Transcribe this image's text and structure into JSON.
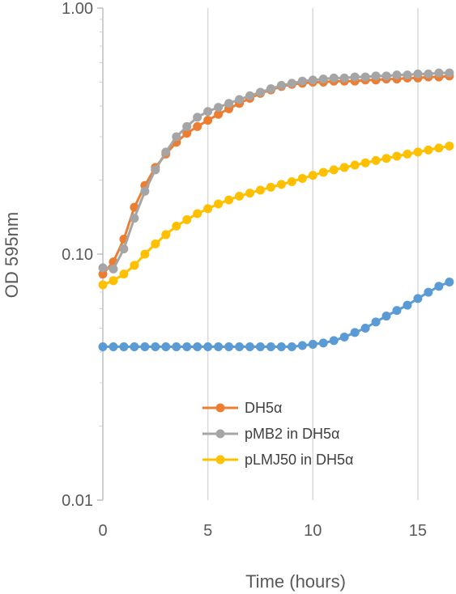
{
  "chart_data": {
    "type": "line",
    "xlabel": "Time (hours)",
    "ylabel": "OD 595nm",
    "y_scale": "log",
    "xlim": [
      0,
      16.7
    ],
    "ylim": [
      0.01,
      1.0
    ],
    "x_ticks": [
      {
        "value": 0,
        "label": "0"
      },
      {
        "value": 5,
        "label": "5"
      },
      {
        "value": 10,
        "label": "10"
      },
      {
        "value": 15,
        "label": "15"
      }
    ],
    "y_ticks": [
      {
        "value": 0.01,
        "label": "0.01"
      },
      {
        "value": 0.1,
        "label": "0.10"
      },
      {
        "value": 1.0,
        "label": "1.00"
      }
    ],
    "grid": {
      "vertical": true,
      "horizontal": false
    },
    "legend": {
      "placement": "bottom-center"
    },
    "x": [
      0,
      0.5,
      1,
      1.5,
      2,
      2.5,
      3,
      3.5,
      4,
      4.5,
      5,
      5.5,
      6,
      6.5,
      7,
      7.5,
      8,
      8.5,
      9,
      9.5,
      10,
      10.5,
      11,
      11.5,
      12,
      12.5,
      13,
      13.5,
      14,
      14.5,
      15,
      15.5,
      16,
      16.5
    ],
    "series": [
      {
        "name": "DH5α",
        "in_legend": true,
        "color": "#ED7D31",
        "values": [
          0.083,
          0.093,
          0.115,
          0.155,
          0.19,
          0.225,
          0.255,
          0.285,
          0.31,
          0.33,
          0.35,
          0.37,
          0.39,
          0.41,
          0.43,
          0.45,
          0.465,
          0.48,
          0.49,
          0.495,
          0.5,
          0.5,
          0.505,
          0.505,
          0.505,
          0.51,
          0.51,
          0.515,
          0.515,
          0.52,
          0.52,
          0.525,
          0.525,
          0.53
        ]
      },
      {
        "name": "pMB2 in DH5α",
        "in_legend": true,
        "color": "#A5A5A5",
        "values": [
          0.088,
          0.087,
          0.105,
          0.14,
          0.18,
          0.22,
          0.26,
          0.3,
          0.33,
          0.36,
          0.38,
          0.395,
          0.41,
          0.425,
          0.44,
          0.455,
          0.47,
          0.485,
          0.495,
          0.505,
          0.51,
          0.515,
          0.52,
          0.52,
          0.525,
          0.525,
          0.53,
          0.53,
          0.535,
          0.535,
          0.54,
          0.54,
          0.545,
          0.545
        ]
      },
      {
        "name": "pLMJ50 in DH5α",
        "in_legend": true,
        "color": "#FFC000",
        "values": [
          0.075,
          0.078,
          0.083,
          0.09,
          0.1,
          0.11,
          0.12,
          0.13,
          0.138,
          0.146,
          0.153,
          0.16,
          0.166,
          0.172,
          0.177,
          0.182,
          0.187,
          0.192,
          0.197,
          0.203,
          0.209,
          0.215,
          0.22,
          0.225,
          0.23,
          0.235,
          0.24,
          0.245,
          0.25,
          0.255,
          0.26,
          0.265,
          0.27,
          0.275
        ]
      },
      {
        "in_legend": false,
        "color": "#5B9BD5",
        "values": [
          0.042,
          0.042,
          0.042,
          0.042,
          0.042,
          0.042,
          0.042,
          0.042,
          0.042,
          0.042,
          0.042,
          0.042,
          0.042,
          0.042,
          0.042,
          0.042,
          0.042,
          0.042,
          0.042,
          0.0425,
          0.043,
          0.0435,
          0.0445,
          0.046,
          0.048,
          0.05,
          0.053,
          0.056,
          0.059,
          0.062,
          0.066,
          0.07,
          0.074,
          0.077
        ]
      }
    ]
  }
}
